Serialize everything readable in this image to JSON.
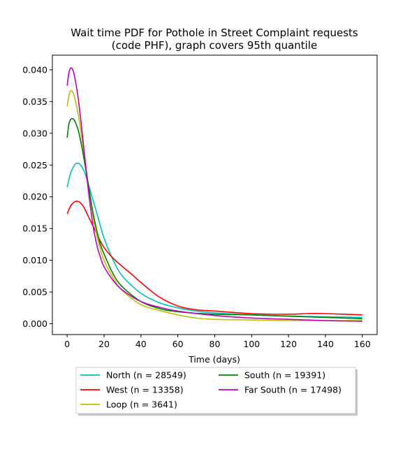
{
  "chart_data": {
    "type": "line",
    "title": "Wait time PDF for Pothole in Street Complaint  requests",
    "subtitle": "(code PHF), graph covers 95th quantile",
    "xlabel": "Time (days)",
    "ylabel": "",
    "xlim": [
      -8,
      168
    ],
    "ylim": [
      -0.0017,
      0.0423
    ],
    "xticks": [
      0,
      20,
      40,
      60,
      80,
      100,
      120,
      140,
      160
    ],
    "yticks": [
      0.0,
      0.005,
      0.01,
      0.015,
      0.02,
      0.025,
      0.03,
      0.035,
      0.04
    ],
    "ytick_labels": [
      "0.000",
      "0.005",
      "0.010",
      "0.015",
      "0.020",
      "0.025",
      "0.030",
      "0.035",
      "0.040"
    ],
    "grid": false,
    "legend_position": "bottom-center",
    "legend_order": [
      0,
      1,
      2,
      3,
      4
    ],
    "series": [
      {
        "name": "North (n = 28549)",
        "color": "#00bfbf",
        "x": [
          0,
          2,
          4,
          5.5,
          7,
          9,
          11,
          13,
          15,
          17,
          20,
          25,
          30,
          40,
          50,
          60,
          70,
          80,
          100,
          120,
          140,
          160
        ],
        "y": [
          0.0215,
          0.0238,
          0.025,
          0.0253,
          0.0251,
          0.0242,
          0.0225,
          0.0205,
          0.0185,
          0.0165,
          0.0135,
          0.01,
          0.0075,
          0.0048,
          0.0033,
          0.0025,
          0.002,
          0.0017,
          0.0014,
          0.0012,
          0.0011,
          0.001
        ]
      },
      {
        "name": "West (n = 13358)",
        "color": "#ff0000",
        "x": [
          0,
          2,
          4,
          5.5,
          7,
          9,
          11,
          13,
          15,
          17,
          20,
          25,
          30,
          35,
          40,
          50,
          60,
          70,
          80,
          100,
          120,
          130,
          140,
          160
        ],
        "y": [
          0.0173,
          0.0186,
          0.0192,
          0.0193,
          0.0191,
          0.0184,
          0.0172,
          0.016,
          0.0148,
          0.0136,
          0.012,
          0.0103,
          0.009,
          0.0078,
          0.0065,
          0.0042,
          0.0028,
          0.0022,
          0.002,
          0.0016,
          0.0015,
          0.0016,
          0.0016,
          0.0014
        ]
      },
      {
        "name": "Loop (n = 3641)",
        "color": "#bfbf00",
        "x": [
          0,
          1,
          2,
          3,
          4,
          6,
          8,
          10,
          12,
          14,
          16,
          18,
          20,
          25,
          30,
          40,
          50,
          60,
          70,
          80,
          100,
          120,
          140,
          160
        ],
        "y": [
          0.0342,
          0.036,
          0.0367,
          0.0365,
          0.0357,
          0.033,
          0.0292,
          0.025,
          0.0208,
          0.017,
          0.014,
          0.0118,
          0.01,
          0.0072,
          0.0052,
          0.003,
          0.0021,
          0.0014,
          0.0009,
          0.0007,
          0.0006,
          0.0005,
          0.0005,
          0.0005
        ]
      },
      {
        "name": "South (n = 19391)",
        "color": "#008000",
        "x": [
          0,
          1,
          2,
          3,
          4,
          6,
          8,
          10,
          12,
          14,
          16,
          18,
          20,
          25,
          30,
          40,
          50,
          60,
          80,
          100,
          120,
          140,
          160
        ],
        "y": [
          0.0293,
          0.0315,
          0.0322,
          0.0323,
          0.032,
          0.0305,
          0.0278,
          0.0245,
          0.021,
          0.0175,
          0.0148,
          0.0125,
          0.011,
          0.0078,
          0.0058,
          0.0035,
          0.0024,
          0.0019,
          0.0015,
          0.0014,
          0.0012,
          0.001,
          0.0008
        ]
      },
      {
        "name": "Far South (n = 17498)",
        "color": "#bf00bf",
        "x": [
          0,
          1,
          2,
          3,
          4,
          6,
          8,
          10,
          12,
          14,
          16,
          18,
          20,
          25,
          30,
          40,
          50,
          60,
          80,
          100,
          120,
          140,
          160
        ],
        "y": [
          0.0375,
          0.0396,
          0.0403,
          0.04,
          0.039,
          0.0355,
          0.0305,
          0.025,
          0.0198,
          0.0155,
          0.0125,
          0.0105,
          0.009,
          0.0068,
          0.0053,
          0.0035,
          0.0026,
          0.002,
          0.0013,
          0.0009,
          0.0007,
          0.0005,
          0.0004
        ]
      }
    ]
  }
}
